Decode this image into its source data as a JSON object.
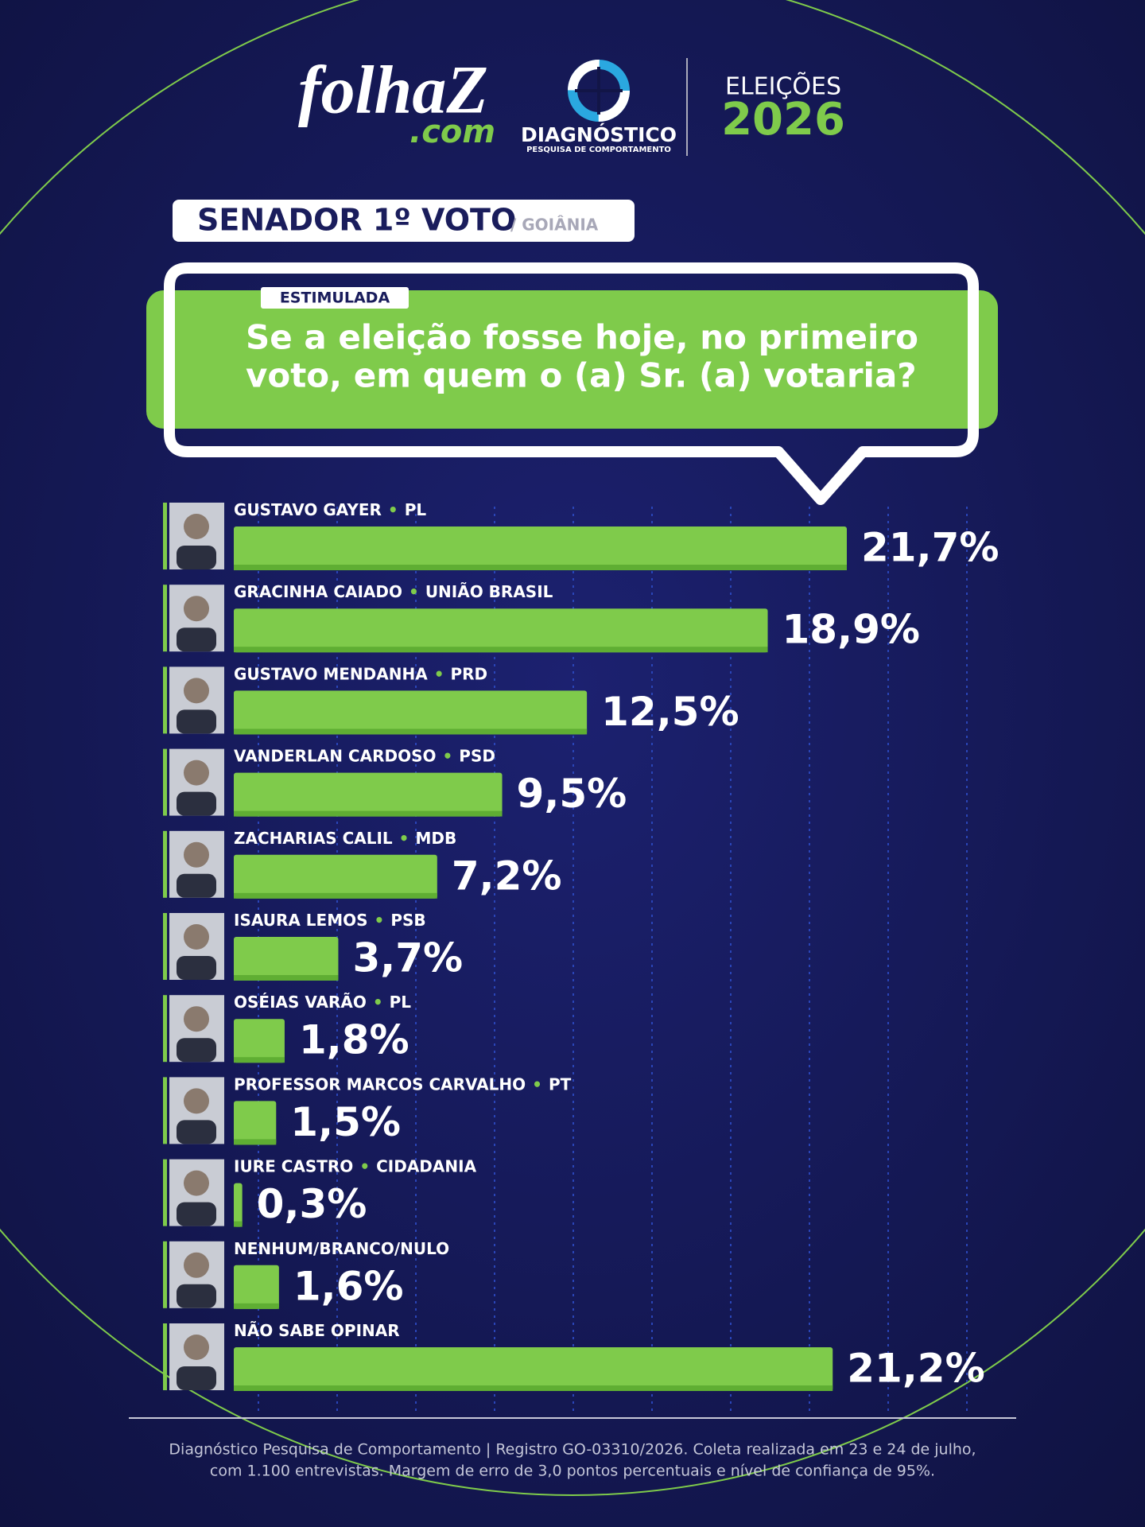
{
  "header": {
    "brand": "folhaZ",
    "brand_suffix": ".com",
    "partner": "DIAGNÓSTICO",
    "partner_tagline": "PESQUISA DE COMPORTAMENTO",
    "event": "ELEIÇÕES",
    "year": "2026"
  },
  "chart_data": {
    "type": "bar",
    "title": "SENADOR 1º VOTO",
    "subtitle": "/ GOIÂNIA",
    "badge": "ESTIMULADA",
    "question": [
      "Se a eleição fosse hoje, no primeiro",
      "voto, em quem o (a) Sr. (a) votaria?"
    ],
    "categories": [
      "GUSTAVO GAYER",
      "GRACINHA CAIADO",
      "GUSTAVO MENDANHA",
      "VANDERLAN CARDOSO",
      "ZACHARIAS CALIL",
      "ISAURA LEMOS",
      "OSÉIAS VARÃO",
      "PROFESSOR MARCOS CARVALHO",
      "IURE CASTRO",
      "NENHUM/BRANCO/NULO",
      "NÃO SABE OPINAR"
    ],
    "parties": [
      "PL",
      "UNIÃO BRASIL",
      "PRD",
      "PSD",
      "MDB",
      "PSB",
      "PL",
      "PT",
      "CIDADANIA",
      null,
      null
    ],
    "values": [
      21.7,
      18.9,
      12.5,
      9.5,
      7.2,
      3.7,
      1.8,
      1.5,
      0.3,
      1.6,
      21.2
    ],
    "value_labels": [
      "21,7%",
      "18,9%",
      "12,5%",
      "9,5%",
      "7,2%",
      "3,7%",
      "1,8%",
      "1,5%",
      "0,3%",
      "1,6%",
      "21,2%"
    ],
    "color": "#7fcb4b"
  },
  "footer": {
    "lines": [
      "Diagnóstico Pesquisa de Comportamento | Registro GO-03310/2026. Coleta realizada em 23 e 24 de julho,",
      "com 1.100 entrevistas. Margem de erro de 3,0 pontos percentuais e nível de confiança de 95%."
    ]
  }
}
